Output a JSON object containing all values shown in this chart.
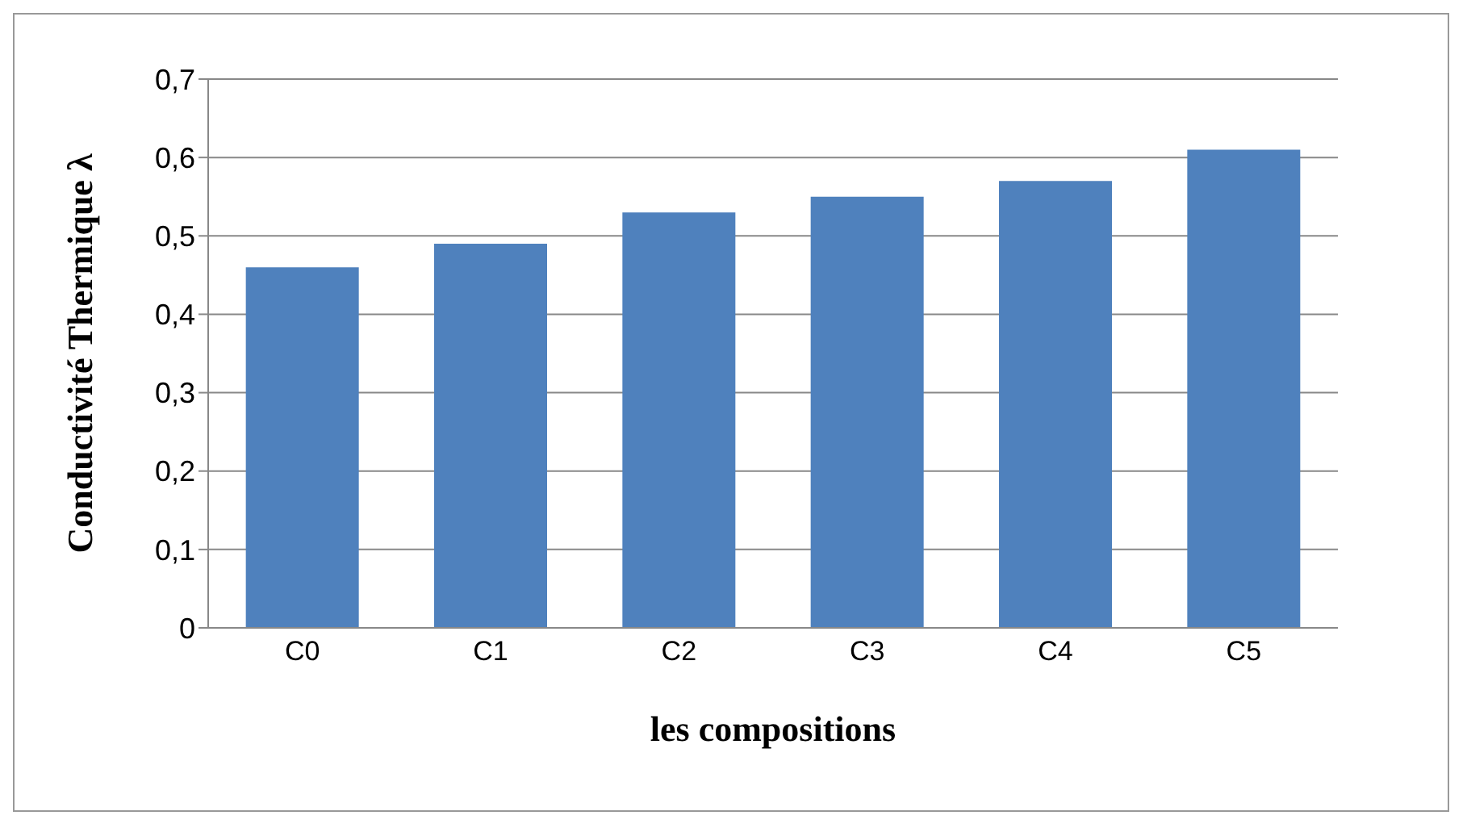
{
  "chart_data": {
    "type": "bar",
    "xlabel": "les compositions",
    "ylabel": "Conductivité Thermique λ",
    "categories": [
      "C0",
      "C1",
      "C2",
      "C3",
      "C4",
      "C5"
    ],
    "values": [
      0.46,
      0.49,
      0.53,
      0.55,
      0.57,
      0.61
    ],
    "color": "#4f81bd",
    "ylim": [
      0,
      0.7
    ],
    "yticks": [
      {
        "value": 0,
        "label": "0"
      },
      {
        "value": 0.1,
        "label": "0,1"
      },
      {
        "value": 0.2,
        "label": "0,2"
      },
      {
        "value": 0.3,
        "label": "0,3"
      },
      {
        "value": 0.4,
        "label": "0,4"
      },
      {
        "value": 0.5,
        "label": "0,5"
      },
      {
        "value": 0.6,
        "label": "0,6"
      },
      {
        "value": 0.7,
        "label": "0,7"
      }
    ],
    "grid": "y"
  }
}
